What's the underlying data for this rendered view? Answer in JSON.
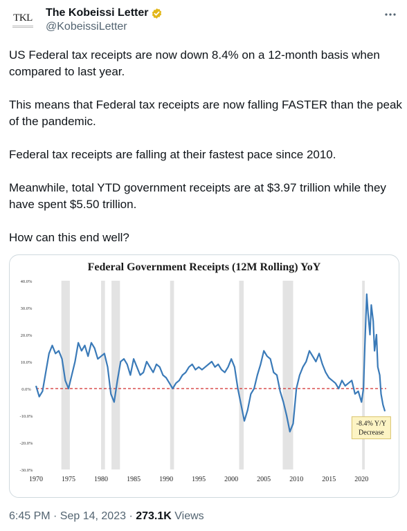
{
  "tweet": {
    "author": {
      "display_name": "The Kobeissi Letter",
      "handle": "@KobeissiLetter",
      "avatar_text": "TKL",
      "verified_icon": "verified-badge-gold"
    },
    "more_icon": "more-horizontal-icon",
    "paragraphs": [
      "US Federal tax receipts are now down 8.4% on a 12-month basis when compared to last year.",
      "This means that Federal tax receipts are now falling FASTER than the peak of the pandemic.",
      "Federal tax receipts are falling at their fastest pace since 2010.",
      "Meanwhile, total YTD government receipts are at $3.97 trillion while they have spent $5.50 trillion.",
      "How can this end well?"
    ],
    "timestamp": "6:45 PM · Sep 14, 2023 · ",
    "views_count": "273.1K",
    "views_label": " Views"
  },
  "colors": {
    "text": "#0f1419",
    "secondary": "#536471",
    "line": "#3a7ab8",
    "zero_line": "#d22b2b",
    "recession": "#e3e3e3",
    "callout_bg": "#fdf4c4",
    "callout_border": "#d9c36a",
    "verified": "#e2b719"
  },
  "chart_data": {
    "type": "line",
    "title": "Federal Government Receipts (12M Rolling) YoY",
    "xlabel": "",
    "ylabel": "",
    "xlim": [
      1970,
      2023.8
    ],
    "ylim": [
      -30,
      40
    ],
    "y_ticks": [
      -30,
      -20,
      -10,
      0,
      10,
      20,
      30,
      40
    ],
    "y_tick_labels": [
      "-30.0%",
      "-20.0%",
      "-10.0%",
      "0.0%",
      "10.0%",
      "20.0%",
      "30.0%",
      "40.0%"
    ],
    "x_ticks": [
      1970,
      1975,
      1980,
      1985,
      1990,
      1995,
      2000,
      2005,
      2010,
      2015,
      2020
    ],
    "x_tick_labels": [
      "1970",
      "1975",
      "1980",
      "1985",
      "1990",
      "1995",
      "2000",
      "2005",
      "2010",
      "2015",
      "2020"
    ],
    "grid": false,
    "reference_line": 0,
    "shaded_periods": [
      [
        1973.9,
        1975.2
      ],
      [
        1980.0,
        1980.6
      ],
      [
        1981.6,
        1982.9
      ],
      [
        1990.6,
        1991.2
      ],
      [
        2001.2,
        2001.9
      ],
      [
        2007.9,
        2009.5
      ],
      [
        2020.1,
        2020.5
      ]
    ],
    "annotation": {
      "lines": [
        "-8.4% Y/Y",
        "Decrease"
      ],
      "x": 2021.5,
      "y": -13
    },
    "series": [
      {
        "name": "",
        "x": [
          1970.0,
          1970.5,
          1971.0,
          1971.5,
          1972.0,
          1972.5,
          1973.0,
          1973.5,
          1974.0,
          1974.5,
          1975.0,
          1975.5,
          1976.0,
          1976.5,
          1977.0,
          1977.5,
          1978.0,
          1978.5,
          1979.0,
          1979.5,
          1980.0,
          1980.5,
          1981.0,
          1981.5,
          1982.0,
          1982.5,
          1983.0,
          1983.5,
          1984.0,
          1984.5,
          1985.0,
          1985.5,
          1986.0,
          1986.5,
          1987.0,
          1987.5,
          1988.0,
          1988.5,
          1989.0,
          1989.5,
          1990.0,
          1990.5,
          1991.0,
          1991.5,
          1992.0,
          1992.5,
          1993.0,
          1993.5,
          1994.0,
          1994.5,
          1995.0,
          1995.5,
          1996.0,
          1996.5,
          1997.0,
          1997.5,
          1998.0,
          1998.5,
          1999.0,
          1999.5,
          2000.0,
          2000.5,
          2001.0,
          2001.5,
          2002.0,
          2002.5,
          2003.0,
          2003.5,
          2004.0,
          2004.5,
          2005.0,
          2005.5,
          2006.0,
          2006.5,
          2007.0,
          2007.5,
          2008.0,
          2008.5,
          2009.0,
          2009.5,
          2010.0,
          2010.5,
          2011.0,
          2011.5,
          2012.0,
          2012.5,
          2013.0,
          2013.5,
          2014.0,
          2014.5,
          2015.0,
          2015.5,
          2016.0,
          2016.5,
          2017.0,
          2017.5,
          2018.0,
          2018.5,
          2019.0,
          2019.5,
          2020.0,
          2020.3,
          2020.5,
          2020.8,
          2021.0,
          2021.3,
          2021.5,
          2021.8,
          2022.0,
          2022.3,
          2022.5,
          2022.8,
          2023.0,
          2023.3,
          2023.6
        ],
        "y": [
          1,
          -3,
          -1,
          6,
          13,
          16,
          13,
          14,
          11,
          3,
          0,
          5,
          10,
          17,
          14,
          16,
          12,
          17,
          15,
          11,
          12,
          13,
          8,
          -2,
          -5,
          3,
          10,
          11,
          9,
          5,
          11,
          8,
          5,
          6,
          10,
          8,
          6,
          9,
          8,
          5,
          4,
          2,
          0,
          2,
          3,
          5,
          6,
          8,
          9,
          7,
          8,
          7,
          8,
          9,
          10,
          8,
          9,
          7,
          6,
          8,
          11,
          8,
          0,
          -6,
          -12,
          -8,
          -2,
          0,
          5,
          9,
          14,
          12,
          11,
          6,
          5,
          -1,
          -5,
          -10,
          -16,
          -13,
          0,
          5,
          8,
          10,
          14,
          12,
          10,
          13,
          9,
          6,
          4,
          3,
          2,
          0,
          3,
          1,
          2,
          3,
          -2,
          -1,
          -5,
          0,
          15,
          35,
          28,
          20,
          31,
          25,
          14,
          20,
          8,
          5,
          -2,
          -6,
          -8.4
        ]
      }
    ]
  }
}
